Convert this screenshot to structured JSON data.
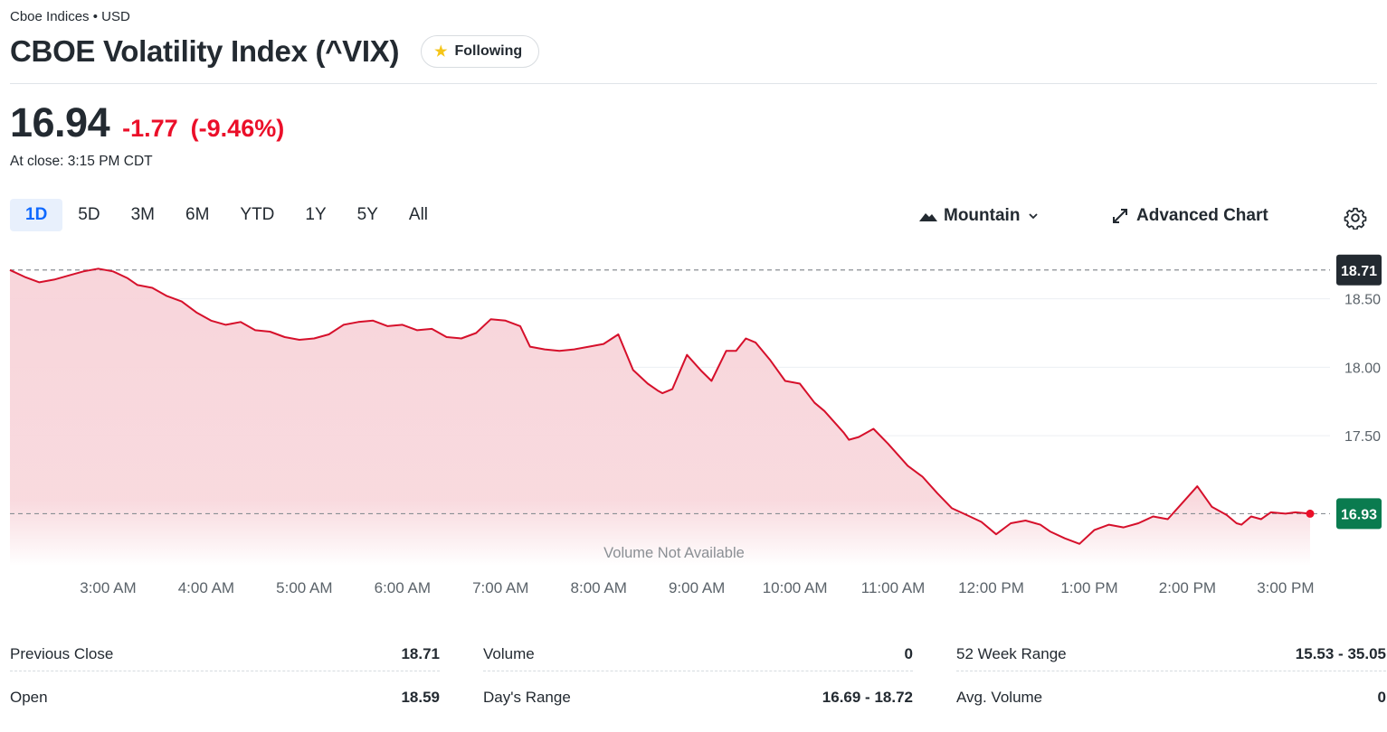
{
  "header": {
    "breadcrumb": "Cboe Indices • USD",
    "title": "CBOE Volatility Index (^VIX)",
    "follow_label": "Following"
  },
  "quote": {
    "price": "16.94",
    "change": "-1.77",
    "change_pct": "(-9.46%)",
    "close_time": "At close: 3:15 PM CDT"
  },
  "ranges": [
    "1D",
    "5D",
    "3M",
    "6M",
    "YTD",
    "1Y",
    "5Y",
    "All"
  ],
  "active_range": "1D",
  "chart_controls": {
    "chart_type_label": "Mountain",
    "advanced_label": "Advanced Chart"
  },
  "colors": {
    "negative": "#eb0f29",
    "line": "#d6102b",
    "fill": "#f8d6db",
    "active_tab_bg": "#e8f0fc",
    "active_tab_text": "#0f69ff",
    "current_badge": "#0a7b4f",
    "prev_badge": "#232a31"
  },
  "chart_data": {
    "type": "area",
    "title": "",
    "xlabel": "",
    "ylabel": "",
    "ylim": [
      16.55,
      18.9
    ],
    "x_tick_labels": [
      "3:00 AM",
      "4:00 AM",
      "5:00 AM",
      "6:00 AM",
      "7:00 AM",
      "8:00 AM",
      "9:00 AM",
      "10:00 AM",
      "11:00 AM",
      "12:00 PM",
      "1:00 PM",
      "2:00 PM",
      "3:00 PM"
    ],
    "y_tick_labels": [
      "18.50",
      "18.00",
      "17.50"
    ],
    "y_ticks": [
      18.5,
      18.0,
      17.5
    ],
    "x_hours_start": 2.0,
    "x_hours_end": 15.25,
    "previous_close": "18.71",
    "previous_close_value": 18.71,
    "current_label": "16.93",
    "current_value": 16.93,
    "volume_note": "Volume Not Available",
    "series": [
      {
        "name": "^VIX",
        "x": [
          2.0,
          2.15,
          2.3,
          2.45,
          2.6,
          2.75,
          2.9,
          3.05,
          3.2,
          3.3,
          3.45,
          3.6,
          3.75,
          3.9,
          4.05,
          4.2,
          4.35,
          4.5,
          4.65,
          4.8,
          4.95,
          5.1,
          5.25,
          5.4,
          5.55,
          5.7,
          5.85,
          6.0,
          6.15,
          6.3,
          6.45,
          6.6,
          6.75,
          6.9,
          7.05,
          7.2,
          7.3,
          7.45,
          7.6,
          7.75,
          7.9,
          8.05,
          8.2,
          8.35,
          8.5,
          8.6,
          8.65,
          8.75,
          8.9,
          9.05,
          9.15,
          9.3,
          9.4,
          9.5,
          9.6,
          9.75,
          9.9,
          10.05,
          10.2,
          10.3,
          10.4,
          10.5,
          10.55,
          10.65,
          10.8,
          10.95,
          11.05,
          11.15,
          11.3,
          11.45,
          11.6,
          11.75,
          11.9,
          12.05,
          12.2,
          12.35,
          12.5,
          12.6,
          12.75,
          12.9,
          13.05,
          13.2,
          13.35,
          13.5,
          13.65,
          13.8,
          13.95,
          14.1,
          14.25,
          14.4,
          14.5,
          14.55,
          14.65,
          14.75,
          14.85,
          15.0,
          15.1,
          15.25
        ],
        "values": [
          18.71,
          18.66,
          18.62,
          18.64,
          18.67,
          18.7,
          18.72,
          18.7,
          18.65,
          18.6,
          18.58,
          18.52,
          18.48,
          18.4,
          18.34,
          18.31,
          18.33,
          18.27,
          18.26,
          18.22,
          18.2,
          18.21,
          18.24,
          18.31,
          18.33,
          18.34,
          18.3,
          18.31,
          18.27,
          18.28,
          18.22,
          18.21,
          18.25,
          18.35,
          18.34,
          18.3,
          18.15,
          18.13,
          18.12,
          18.13,
          18.15,
          18.17,
          18.24,
          17.98,
          17.88,
          17.83,
          17.81,
          17.84,
          18.09,
          17.97,
          17.9,
          18.12,
          18.12,
          18.21,
          18.18,
          18.05,
          17.9,
          17.88,
          17.74,
          17.68,
          17.6,
          17.52,
          17.47,
          17.49,
          17.55,
          17.44,
          17.36,
          17.28,
          17.2,
          17.08,
          16.97,
          16.92,
          16.87,
          16.78,
          16.86,
          16.88,
          16.85,
          16.8,
          16.75,
          16.71,
          16.81,
          16.85,
          16.83,
          16.86,
          16.91,
          16.89,
          17.01,
          17.13,
          16.98,
          16.92,
          16.86,
          16.85,
          16.91,
          16.89,
          16.94,
          16.93,
          16.94,
          16.93
        ]
      }
    ]
  },
  "stats": {
    "previous_close": {
      "label": "Previous Close",
      "value": "18.71"
    },
    "open": {
      "label": "Open",
      "value": "18.59"
    },
    "volume": {
      "label": "Volume",
      "value": "0"
    },
    "days_range": {
      "label": "Day's Range",
      "value": "16.69 - 18.72"
    },
    "week52_range": {
      "label": "52 Week Range",
      "value": "15.53 - 35.05"
    },
    "avg_volume": {
      "label": "Avg. Volume",
      "value": "0"
    }
  }
}
